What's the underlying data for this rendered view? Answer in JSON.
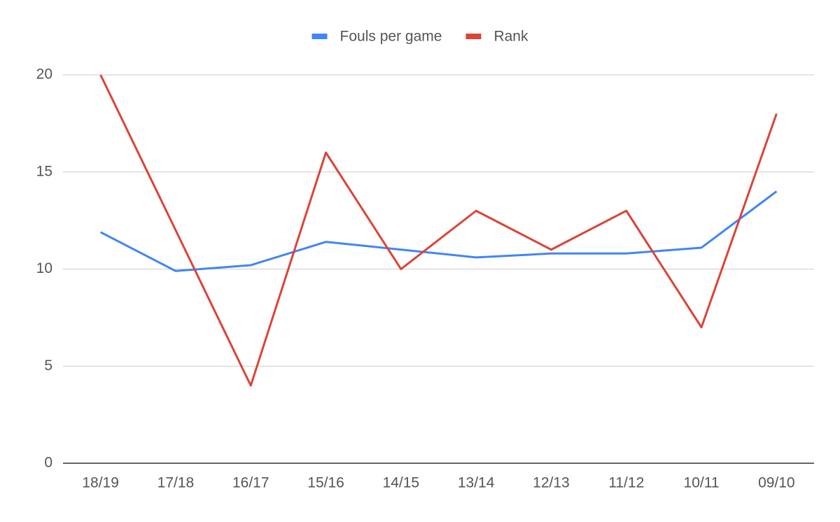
{
  "chart_data": {
    "type": "line",
    "categories": [
      "18/19",
      "17/18",
      "16/17",
      "15/16",
      "14/15",
      "13/14",
      "12/13",
      "11/12",
      "10/11",
      "09/10"
    ],
    "series": [
      {
        "name": "Fouls per game",
        "color": "#4285f4",
        "values": [
          11.9,
          9.9,
          10.2,
          11.4,
          11.0,
          10.6,
          10.8,
          10.8,
          11.1,
          14.0
        ]
      },
      {
        "name": "Rank",
        "color": "#db4437",
        "values": [
          20,
          12,
          4,
          16,
          10,
          13,
          11,
          13,
          7,
          18
        ]
      }
    ],
    "ylim": [
      0,
      20
    ],
    "yticks": [
      0,
      5,
      10,
      15,
      20
    ],
    "grid": true,
    "legend": "top"
  }
}
